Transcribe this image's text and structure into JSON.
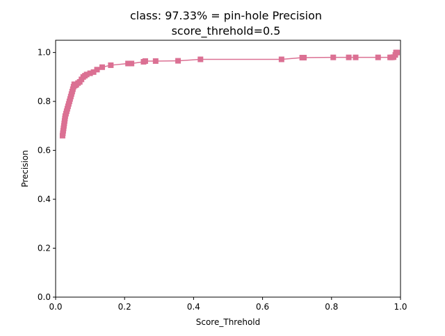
{
  "chart_data": {
    "type": "line",
    "title": "class: 97.33% = pin-hole Precision",
    "subtitle": "score_threhold=0.5",
    "xlabel": "Score_Threhold",
    "ylabel": "Precision",
    "xlim": [
      0.0,
      1.0
    ],
    "ylim": [
      0.0,
      1.05
    ],
    "xticks": [
      "0.0",
      "0.2",
      "0.4",
      "0.6",
      "0.8",
      "1.0"
    ],
    "yticks": [
      "0.0",
      "0.2",
      "0.4",
      "0.6",
      "0.8",
      "1.0"
    ],
    "grid": false,
    "marker": "square",
    "color": "#db7093",
    "series": [
      {
        "x": [
          0.02,
          0.021,
          0.022,
          0.023,
          0.024,
          0.025,
          0.026,
          0.027,
          0.028,
          0.03,
          0.032,
          0.034,
          0.036,
          0.038,
          0.04,
          0.042,
          0.044,
          0.046,
          0.048,
          0.05,
          0.052,
          0.054,
          0.056,
          0.058,
          0.06,
          0.065,
          0.07,
          0.075,
          0.08,
          0.085,
          0.09,
          0.1,
          0.11,
          0.12,
          0.135,
          0.16,
          0.21,
          0.22,
          0.255,
          0.26,
          0.29,
          0.355,
          0.42,
          0.655,
          0.715,
          0.72,
          0.805,
          0.85,
          0.87,
          0.935,
          0.97,
          0.975,
          0.98,
          0.985,
          0.987,
          0.99
        ],
        "y": [
          0.66,
          0.67,
          0.68,
          0.69,
          0.7,
          0.71,
          0.72,
          0.73,
          0.74,
          0.75,
          0.76,
          0.77,
          0.78,
          0.79,
          0.8,
          0.81,
          0.82,
          0.83,
          0.84,
          0.85,
          0.86,
          0.87,
          0.865,
          0.87,
          0.868,
          0.875,
          0.88,
          0.89,
          0.9,
          0.905,
          0.91,
          0.915,
          0.92,
          0.93,
          0.94,
          0.948,
          0.955,
          0.955,
          0.962,
          0.965,
          0.965,
          0.966,
          0.972,
          0.972,
          0.979,
          0.979,
          0.98,
          0.98,
          0.98,
          0.98,
          0.98,
          0.98,
          0.981,
          0.99,
          1.0,
          1.0
        ]
      }
    ]
  }
}
